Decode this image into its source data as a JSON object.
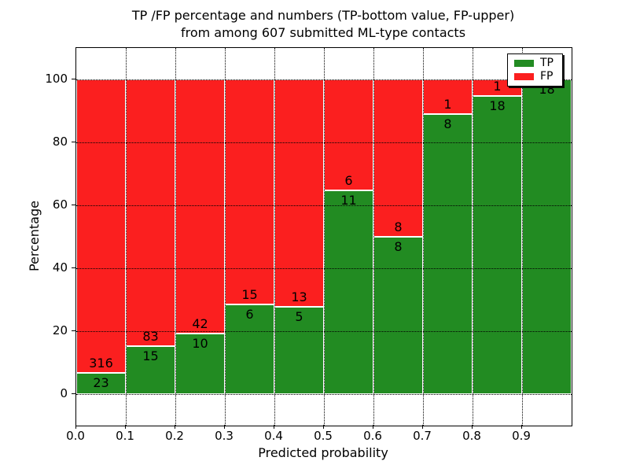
{
  "chart_data": {
    "type": "bar",
    "stacked": true,
    "normalized_to_100_percent": true,
    "title_line1": "TP /FP percentage and numbers (TP-bottom value, FP-upper)",
    "title_line2": "from among 607 submitted ML-type contacts",
    "xlabel": "Predicted probability",
    "ylabel": "Percentage",
    "categories": [
      "0.0",
      "0.1",
      "0.2",
      "0.3",
      "0.4",
      "0.5",
      "0.6",
      "0.7",
      "0.8",
      "0.9"
    ],
    "bar_width": 0.1,
    "series": [
      {
        "name": "TP",
        "color": "#228B22",
        "values": [
          23,
          15,
          10,
          6,
          5,
          11,
          8,
          8,
          18,
          18
        ]
      },
      {
        "name": "FP",
        "color": "#FB1F1F",
        "values": [
          316,
          83,
          42,
          15,
          13,
          6,
          8,
          1,
          1,
          0
        ]
      }
    ],
    "xticks": [
      "0.0",
      "0.1",
      "0.2",
      "0.3",
      "0.4",
      "0.5",
      "0.6",
      "0.7",
      "0.8",
      "0.9"
    ],
    "yticks": [
      0,
      20,
      40,
      60,
      80,
      100
    ],
    "xlim": [
      0.0,
      1.0
    ],
    "ylim": [
      -10,
      110
    ],
    "grid": {
      "linestyle": "dotted",
      "color": "#000000",
      "drawn_over_bars": true
    },
    "bar_edge_color": "#FFFFFF",
    "legend": {
      "position": "upper-right",
      "entries": [
        {
          "label": "TP",
          "color": "#228B22"
        },
        {
          "label": "FP",
          "color": "#FB1F1F"
        }
      ]
    }
  }
}
